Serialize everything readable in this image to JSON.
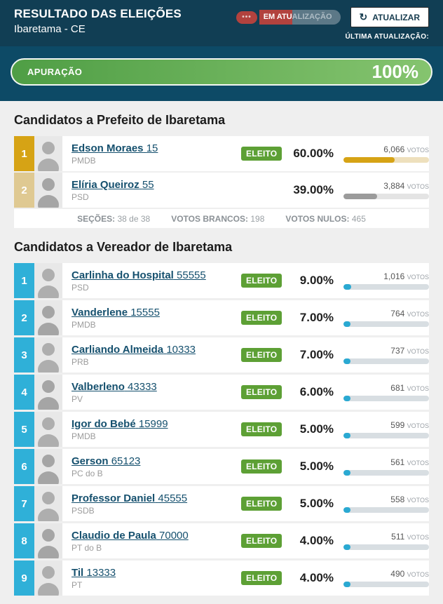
{
  "header": {
    "title": "RESULTADO DAS ELEIÇÕES",
    "subtitle": "Ibaretama - CE",
    "status_dots": "•••",
    "status_highlight": "EM ATU",
    "status_rest": "ALIZAÇÃO",
    "refresh_icon": "↻",
    "refresh_label": "ATUALIZAR",
    "last_update_label": "ÚLTIMA ATUALIZAÇÃO:"
  },
  "apuracao": {
    "label": "APURAÇÃO",
    "value_label": "100%",
    "percent": 100
  },
  "labels": {
    "votes_unit": "VOTOS",
    "elected": "ELEITO"
  },
  "colors": {
    "header_bg": "#113e54",
    "band_bg": "#0d4a66",
    "accent_red": "#b2423e",
    "green_dark": "#4f9e45",
    "green_light": "#85c46f",
    "eleito_green": "#5da035",
    "gold": "#d6a315",
    "gold_light": "#dfc992",
    "cyan": "#2fb0d8",
    "link_blue": "#15506e"
  },
  "mayor_section": {
    "title": "Candidatos a Prefeito de Ibaretama",
    "candidates": [
      {
        "rank": "1",
        "name": "Edson Moraes",
        "number": "15",
        "party": "PMDB",
        "elected_label": "ELEITO",
        "percent_label": "60.00%",
        "percent": 60,
        "votes": "6,066"
      },
      {
        "rank": "2",
        "name": "Elíria Queiroz",
        "number": "55",
        "party": "PSD",
        "elected_label": "",
        "percent_label": "39.00%",
        "percent": 39,
        "votes": "3,884"
      }
    ],
    "stats": [
      {
        "label": "SEÇÕES:",
        "value": "38 de 38"
      },
      {
        "label": "VOTOS BRANCOS:",
        "value": "198"
      },
      {
        "label": "VOTOS NULOS:",
        "value": "465"
      }
    ]
  },
  "council_section": {
    "title": "Candidatos a Vereador de Ibaretama",
    "candidates": [
      {
        "rank": "1",
        "name": "Carlinha do Hospital",
        "number": "55555",
        "party": "PSD",
        "elected_label": "ELEITO",
        "percent_label": "9.00%",
        "percent": 9,
        "votes": "1,016"
      },
      {
        "rank": "2",
        "name": "Vanderlene",
        "number": "15555",
        "party": "PMDB",
        "elected_label": "ELEITO",
        "percent_label": "7.00%",
        "percent": 7,
        "votes": "764"
      },
      {
        "rank": "3",
        "name": "Carliando Almeida",
        "number": "10333",
        "party": "PRB",
        "elected_label": "ELEITO",
        "percent_label": "7.00%",
        "percent": 7,
        "votes": "737"
      },
      {
        "rank": "4",
        "name": "Valberleno",
        "number": "43333",
        "party": "PV",
        "elected_label": "ELEITO",
        "percent_label": "6.00%",
        "percent": 6,
        "votes": "681"
      },
      {
        "rank": "5",
        "name": "Igor do Bebé",
        "number": "15999",
        "party": "PMDB",
        "elected_label": "ELEITO",
        "percent_label": "5.00%",
        "percent": 5,
        "votes": "599"
      },
      {
        "rank": "6",
        "name": "Gerson",
        "number": "65123",
        "party": "PC do B",
        "elected_label": "ELEITO",
        "percent_label": "5.00%",
        "percent": 5,
        "votes": "561"
      },
      {
        "rank": "7",
        "name": "Professor Daniel",
        "number": "45555",
        "party": "PSDB",
        "elected_label": "ELEITO",
        "percent_label": "5.00%",
        "percent": 5,
        "votes": "558"
      },
      {
        "rank": "8",
        "name": "Claudio de Paula",
        "number": "70000",
        "party": "PT do B",
        "elected_label": "ELEITO",
        "percent_label": "4.00%",
        "percent": 4,
        "votes": "511"
      },
      {
        "rank": "9",
        "name": "Til",
        "number": "13333",
        "party": "PT",
        "elected_label": "ELEITO",
        "percent_label": "4.00%",
        "percent": 4,
        "votes": "490"
      }
    ]
  }
}
